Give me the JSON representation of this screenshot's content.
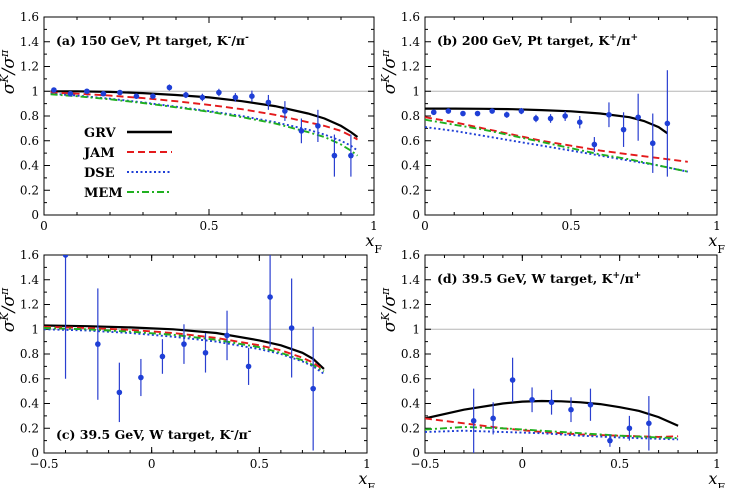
{
  "figure": {
    "width": 747,
    "height": 488
  },
  "legend": {
    "entries": [
      {
        "name": "GRV",
        "color": "#000000",
        "dash": "solid"
      },
      {
        "name": "JAM",
        "color": "#e41a1c",
        "dash": "dashed"
      },
      {
        "name": "DSE",
        "color": "#1f3fd6",
        "dash": "dotted"
      },
      {
        "name": "MEM",
        "color": "#20b020",
        "dash": "dashdot"
      }
    ]
  },
  "chart_data": [
    {
      "type": "line",
      "panel": "a",
      "title": "(a)  150 GeV, Pt target,  K⁻/π⁻",
      "xlabel": "x_F",
      "ylabel": "σ^K/σ^π",
      "xlim": [
        0,
        1
      ],
      "ylim": [
        0,
        1.6
      ],
      "xticks": [
        0,
        0.5,
        1
      ],
      "xticklabels": [
        "0",
        "0.5",
        "1"
      ],
      "yticks": [
        0,
        0.2,
        0.4,
        0.6,
        0.8,
        1,
        1.2,
        1.4,
        1.6
      ],
      "yticklabels": [
        "0",
        "0.2",
        "0.4",
        "0.6",
        "0.8",
        "1",
        "1.2",
        "1.4",
        "1.6"
      ],
      "reference_line": 1,
      "series": [
        {
          "name": "GRV",
          "x": [
            0.02,
            0.1,
            0.2,
            0.3,
            0.4,
            0.5,
            0.6,
            0.7,
            0.8,
            0.85,
            0.9,
            0.93,
            0.95
          ],
          "y": [
            1.0,
            1.0,
            0.995,
            0.985,
            0.97,
            0.95,
            0.92,
            0.88,
            0.82,
            0.78,
            0.72,
            0.67,
            0.63
          ]
        },
        {
          "name": "JAM",
          "x": [
            0.02,
            0.1,
            0.2,
            0.3,
            0.4,
            0.5,
            0.6,
            0.7,
            0.8,
            0.85,
            0.9,
            0.93,
            0.95
          ],
          "y": [
            0.99,
            0.98,
            0.965,
            0.945,
            0.92,
            0.89,
            0.855,
            0.81,
            0.75,
            0.72,
            0.68,
            0.64,
            0.61
          ]
        },
        {
          "name": "DSE",
          "x": [
            0.02,
            0.1,
            0.2,
            0.3,
            0.4,
            0.5,
            0.6,
            0.7,
            0.8,
            0.85,
            0.9,
            0.93,
            0.95
          ],
          "y": [
            0.98,
            0.965,
            0.94,
            0.91,
            0.875,
            0.84,
            0.8,
            0.75,
            0.69,
            0.65,
            0.6,
            0.56,
            0.52
          ]
        },
        {
          "name": "MEM",
          "x": [
            0.02,
            0.1,
            0.2,
            0.3,
            0.4,
            0.5,
            0.6,
            0.7,
            0.8,
            0.85,
            0.9,
            0.93,
            0.95
          ],
          "y": [
            0.975,
            0.96,
            0.935,
            0.905,
            0.87,
            0.835,
            0.79,
            0.74,
            0.67,
            0.63,
            0.57,
            0.52,
            0.48
          ]
        }
      ],
      "points": [
        {
          "x": 0.03,
          "y": 1.01,
          "err": 0.015
        },
        {
          "x": 0.08,
          "y": 0.98,
          "err": 0.015
        },
        {
          "x": 0.13,
          "y": 1.0,
          "err": 0.015
        },
        {
          "x": 0.18,
          "y": 0.98,
          "err": 0.015
        },
        {
          "x": 0.23,
          "y": 0.99,
          "err": 0.02
        },
        {
          "x": 0.28,
          "y": 0.96,
          "err": 0.02
        },
        {
          "x": 0.33,
          "y": 0.96,
          "err": 0.02
        },
        {
          "x": 0.38,
          "y": 1.03,
          "err": 0.025
        },
        {
          "x": 0.43,
          "y": 0.97,
          "err": 0.025
        },
        {
          "x": 0.48,
          "y": 0.95,
          "err": 0.03
        },
        {
          "x": 0.53,
          "y": 0.99,
          "err": 0.03
        },
        {
          "x": 0.58,
          "y": 0.95,
          "err": 0.035
        },
        {
          "x": 0.63,
          "y": 0.96,
          "err": 0.045
        },
        {
          "x": 0.68,
          "y": 0.91,
          "err": 0.06
        },
        {
          "x": 0.73,
          "y": 0.84,
          "err": 0.08
        },
        {
          "x": 0.78,
          "y": 0.68,
          "err": 0.1
        },
        {
          "x": 0.83,
          "y": 0.72,
          "err": 0.13
        },
        {
          "x": 0.88,
          "y": 0.48,
          "err": 0.17
        },
        {
          "x": 0.93,
          "y": 0.48,
          "err": 0.17
        }
      ],
      "title_pos": "upper-left",
      "has_legend": true
    },
    {
      "type": "line",
      "panel": "b",
      "title": "(b)  200 GeV, Pt target,  K⁺/π⁺",
      "xlabel": "x_F",
      "ylabel": "σ^K/σ^π",
      "xlim": [
        0,
        1
      ],
      "ylim": [
        0,
        1.6
      ],
      "xticks": [
        0,
        0.5,
        1
      ],
      "xticklabels": [
        "0",
        "0.5",
        "1"
      ],
      "yticks": [
        0,
        0.2,
        0.4,
        0.6,
        0.8,
        1,
        1.2,
        1.4,
        1.6
      ],
      "yticklabels": [
        "0",
        "0.2",
        "0.4",
        "0.6",
        "0.8",
        "1",
        "1.2",
        "1.4",
        "1.6"
      ],
      "reference_line": 1,
      "series": [
        {
          "name": "GRV",
          "x": [
            0.0,
            0.1,
            0.2,
            0.3,
            0.4,
            0.5,
            0.6,
            0.7,
            0.75,
            0.8,
            0.83
          ],
          "y": [
            0.86,
            0.86,
            0.858,
            0.855,
            0.848,
            0.838,
            0.82,
            0.79,
            0.76,
            0.71,
            0.66
          ]
        },
        {
          "name": "JAM",
          "x": [
            0.0,
            0.1,
            0.2,
            0.3,
            0.4,
            0.5,
            0.6,
            0.7,
            0.8,
            0.9
          ],
          "y": [
            0.79,
            0.75,
            0.7,
            0.65,
            0.6,
            0.56,
            0.52,
            0.49,
            0.46,
            0.43
          ]
        },
        {
          "name": "DSE",
          "x": [
            0.0,
            0.1,
            0.2,
            0.3,
            0.4,
            0.5,
            0.6,
            0.7,
            0.8,
            0.9
          ],
          "y": [
            0.71,
            0.68,
            0.64,
            0.6,
            0.56,
            0.52,
            0.48,
            0.44,
            0.4,
            0.35
          ]
        },
        {
          "name": "MEM",
          "x": [
            0.0,
            0.1,
            0.2,
            0.3,
            0.4,
            0.5,
            0.6,
            0.7,
            0.8,
            0.9
          ],
          "y": [
            0.77,
            0.73,
            0.69,
            0.64,
            0.59,
            0.54,
            0.49,
            0.45,
            0.4,
            0.35
          ]
        }
      ],
      "points": [
        {
          "x": 0.03,
          "y": 0.83,
          "err": 0.02
        },
        {
          "x": 0.08,
          "y": 0.84,
          "err": 0.02
        },
        {
          "x": 0.13,
          "y": 0.82,
          "err": 0.02
        },
        {
          "x": 0.18,
          "y": 0.82,
          "err": 0.02
        },
        {
          "x": 0.23,
          "y": 0.84,
          "err": 0.02
        },
        {
          "x": 0.28,
          "y": 0.81,
          "err": 0.025
        },
        {
          "x": 0.33,
          "y": 0.84,
          "err": 0.025
        },
        {
          "x": 0.38,
          "y": 0.78,
          "err": 0.03
        },
        {
          "x": 0.43,
          "y": 0.78,
          "err": 0.035
        },
        {
          "x": 0.48,
          "y": 0.8,
          "err": 0.04
        },
        {
          "x": 0.53,
          "y": 0.75,
          "err": 0.05
        },
        {
          "x": 0.58,
          "y": 0.57,
          "err": 0.06
        },
        {
          "x": 0.63,
          "y": 0.81,
          "err": 0.1
        },
        {
          "x": 0.68,
          "y": 0.69,
          "err": 0.14
        },
        {
          "x": 0.73,
          "y": 0.79,
          "err": 0.19
        },
        {
          "x": 0.78,
          "y": 0.58,
          "err": 0.24
        },
        {
          "x": 0.83,
          "y": 0.74,
          "err": 0.43
        }
      ],
      "title_pos": "upper-left",
      "has_legend": false
    },
    {
      "type": "line",
      "panel": "c",
      "title": "(c)  39.5 GeV, W target,  K⁻/π⁻",
      "xlabel": "x_F",
      "ylabel": "σ^K/σ^π",
      "xlim": [
        -0.5,
        1
      ],
      "ylim": [
        0,
        1.6
      ],
      "xticks": [
        -0.5,
        0,
        0.5,
        1
      ],
      "xticklabels": [
        "−0.5",
        "0",
        "0.5",
        "1"
      ],
      "yticks": [
        0,
        0.2,
        0.4,
        0.6,
        0.8,
        1,
        1.2,
        1.4,
        1.6
      ],
      "yticklabels": [
        "0",
        "0.2",
        "0.4",
        "0.6",
        "0.8",
        "1",
        "1.2",
        "1.4",
        "1.6"
      ],
      "reference_line": 1,
      "series": [
        {
          "name": "GRV",
          "x": [
            -0.5,
            -0.3,
            -0.1,
            0.1,
            0.3,
            0.5,
            0.6,
            0.7,
            0.75,
            0.8
          ],
          "y": [
            1.03,
            1.025,
            1.015,
            1.0,
            0.97,
            0.91,
            0.87,
            0.81,
            0.76,
            0.68
          ]
        },
        {
          "name": "JAM",
          "x": [
            -0.5,
            -0.3,
            -0.1,
            0.1,
            0.3,
            0.5,
            0.6,
            0.7,
            0.75,
            0.8
          ],
          "y": [
            1.02,
            1.01,
            0.995,
            0.97,
            0.93,
            0.87,
            0.83,
            0.77,
            0.73,
            0.67
          ]
        },
        {
          "name": "DSE",
          "x": [
            -0.5,
            -0.3,
            -0.1,
            0.1,
            0.3,
            0.5,
            0.6,
            0.7,
            0.75,
            0.8
          ],
          "y": [
            1.0,
            0.99,
            0.97,
            0.94,
            0.9,
            0.84,
            0.8,
            0.74,
            0.7,
            0.64
          ]
        },
        {
          "name": "MEM",
          "x": [
            -0.5,
            -0.3,
            -0.1,
            0.1,
            0.3,
            0.5,
            0.6,
            0.7,
            0.75,
            0.8
          ],
          "y": [
            1.01,
            1.0,
            0.98,
            0.955,
            0.915,
            0.855,
            0.81,
            0.75,
            0.71,
            0.66
          ]
        }
      ],
      "points": [
        {
          "x": -0.4,
          "y": 1.6,
          "err": 1.0
        },
        {
          "x": -0.25,
          "y": 0.88,
          "err": 0.45
        },
        {
          "x": -0.15,
          "y": 0.49,
          "err": 0.24
        },
        {
          "x": -0.05,
          "y": 0.61,
          "err": 0.15
        },
        {
          "x": 0.05,
          "y": 0.78,
          "err": 0.14
        },
        {
          "x": 0.15,
          "y": 0.88,
          "err": 0.16
        },
        {
          "x": 0.25,
          "y": 0.81,
          "err": 0.16
        },
        {
          "x": 0.35,
          "y": 0.95,
          "err": 0.2
        },
        {
          "x": 0.45,
          "y": 0.7,
          "err": 0.15
        },
        {
          "x": 0.55,
          "y": 1.26,
          "err": 0.4
        },
        {
          "x": 0.65,
          "y": 1.01,
          "err": 0.4
        },
        {
          "x": 0.75,
          "y": 0.52,
          "err": 0.5
        }
      ],
      "title_pos": "lower-left",
      "has_legend": false
    },
    {
      "type": "line",
      "panel": "d",
      "title": "(d)  39.5 GeV, W target,  K⁺/π⁺",
      "xlabel": "x_F",
      "ylabel": "σ^K/σ^π",
      "xlim": [
        -0.5,
        1
      ],
      "ylim": [
        0,
        1.6
      ],
      "xticks": [
        -0.5,
        0,
        0.5,
        1
      ],
      "xticklabels": [
        "−0.5",
        "0",
        "0.5",
        "1"
      ],
      "yticks": [
        0,
        0.2,
        0.4,
        0.6,
        0.8,
        1,
        1.2,
        1.4,
        1.6
      ],
      "yticklabels": [
        "0",
        "0.2",
        "0.4",
        "0.6",
        "0.8",
        "1",
        "1.2",
        "1.4",
        "1.6"
      ],
      "reference_line": 1,
      "series": [
        {
          "name": "GRV",
          "x": [
            -0.5,
            -0.3,
            -0.1,
            0.0,
            0.1,
            0.2,
            0.3,
            0.4,
            0.5,
            0.6,
            0.7,
            0.8
          ],
          "y": [
            0.28,
            0.35,
            0.4,
            0.415,
            0.42,
            0.418,
            0.41,
            0.395,
            0.37,
            0.34,
            0.29,
            0.22
          ]
        },
        {
          "name": "JAM",
          "x": [
            -0.5,
            -0.3,
            -0.1,
            0.1,
            0.3,
            0.5,
            0.7,
            0.8
          ],
          "y": [
            0.28,
            0.24,
            0.2,
            0.17,
            0.15,
            0.14,
            0.13,
            0.135
          ]
        },
        {
          "name": "DSE",
          "x": [
            -0.5,
            -0.3,
            -0.1,
            0.1,
            0.3,
            0.5,
            0.7,
            0.8
          ],
          "y": [
            0.17,
            0.18,
            0.17,
            0.16,
            0.14,
            0.125,
            0.115,
            0.11
          ]
        },
        {
          "name": "MEM",
          "x": [
            -0.5,
            -0.3,
            -0.1,
            0.1,
            0.3,
            0.5,
            0.7,
            0.8
          ],
          "y": [
            0.19,
            0.21,
            0.2,
            0.18,
            0.16,
            0.14,
            0.125,
            0.12
          ]
        }
      ],
      "points": [
        {
          "x": -0.25,
          "y": 0.26,
          "err": 0.26
        },
        {
          "x": -0.15,
          "y": 0.28,
          "err": 0.13
        },
        {
          "x": -0.05,
          "y": 0.59,
          "err": 0.18
        },
        {
          "x": 0.05,
          "y": 0.43,
          "err": 0.1
        },
        {
          "x": 0.15,
          "y": 0.41,
          "err": 0.1
        },
        {
          "x": 0.25,
          "y": 0.35,
          "err": 0.1
        },
        {
          "x": 0.35,
          "y": 0.39,
          "err": 0.13
        },
        {
          "x": 0.45,
          "y": 0.1,
          "err": 0.05
        },
        {
          "x": 0.55,
          "y": 0.2,
          "err": 0.1
        },
        {
          "x": 0.65,
          "y": 0.24,
          "err": 0.22
        }
      ],
      "title_pos": "upper-left",
      "has_legend": false
    }
  ]
}
